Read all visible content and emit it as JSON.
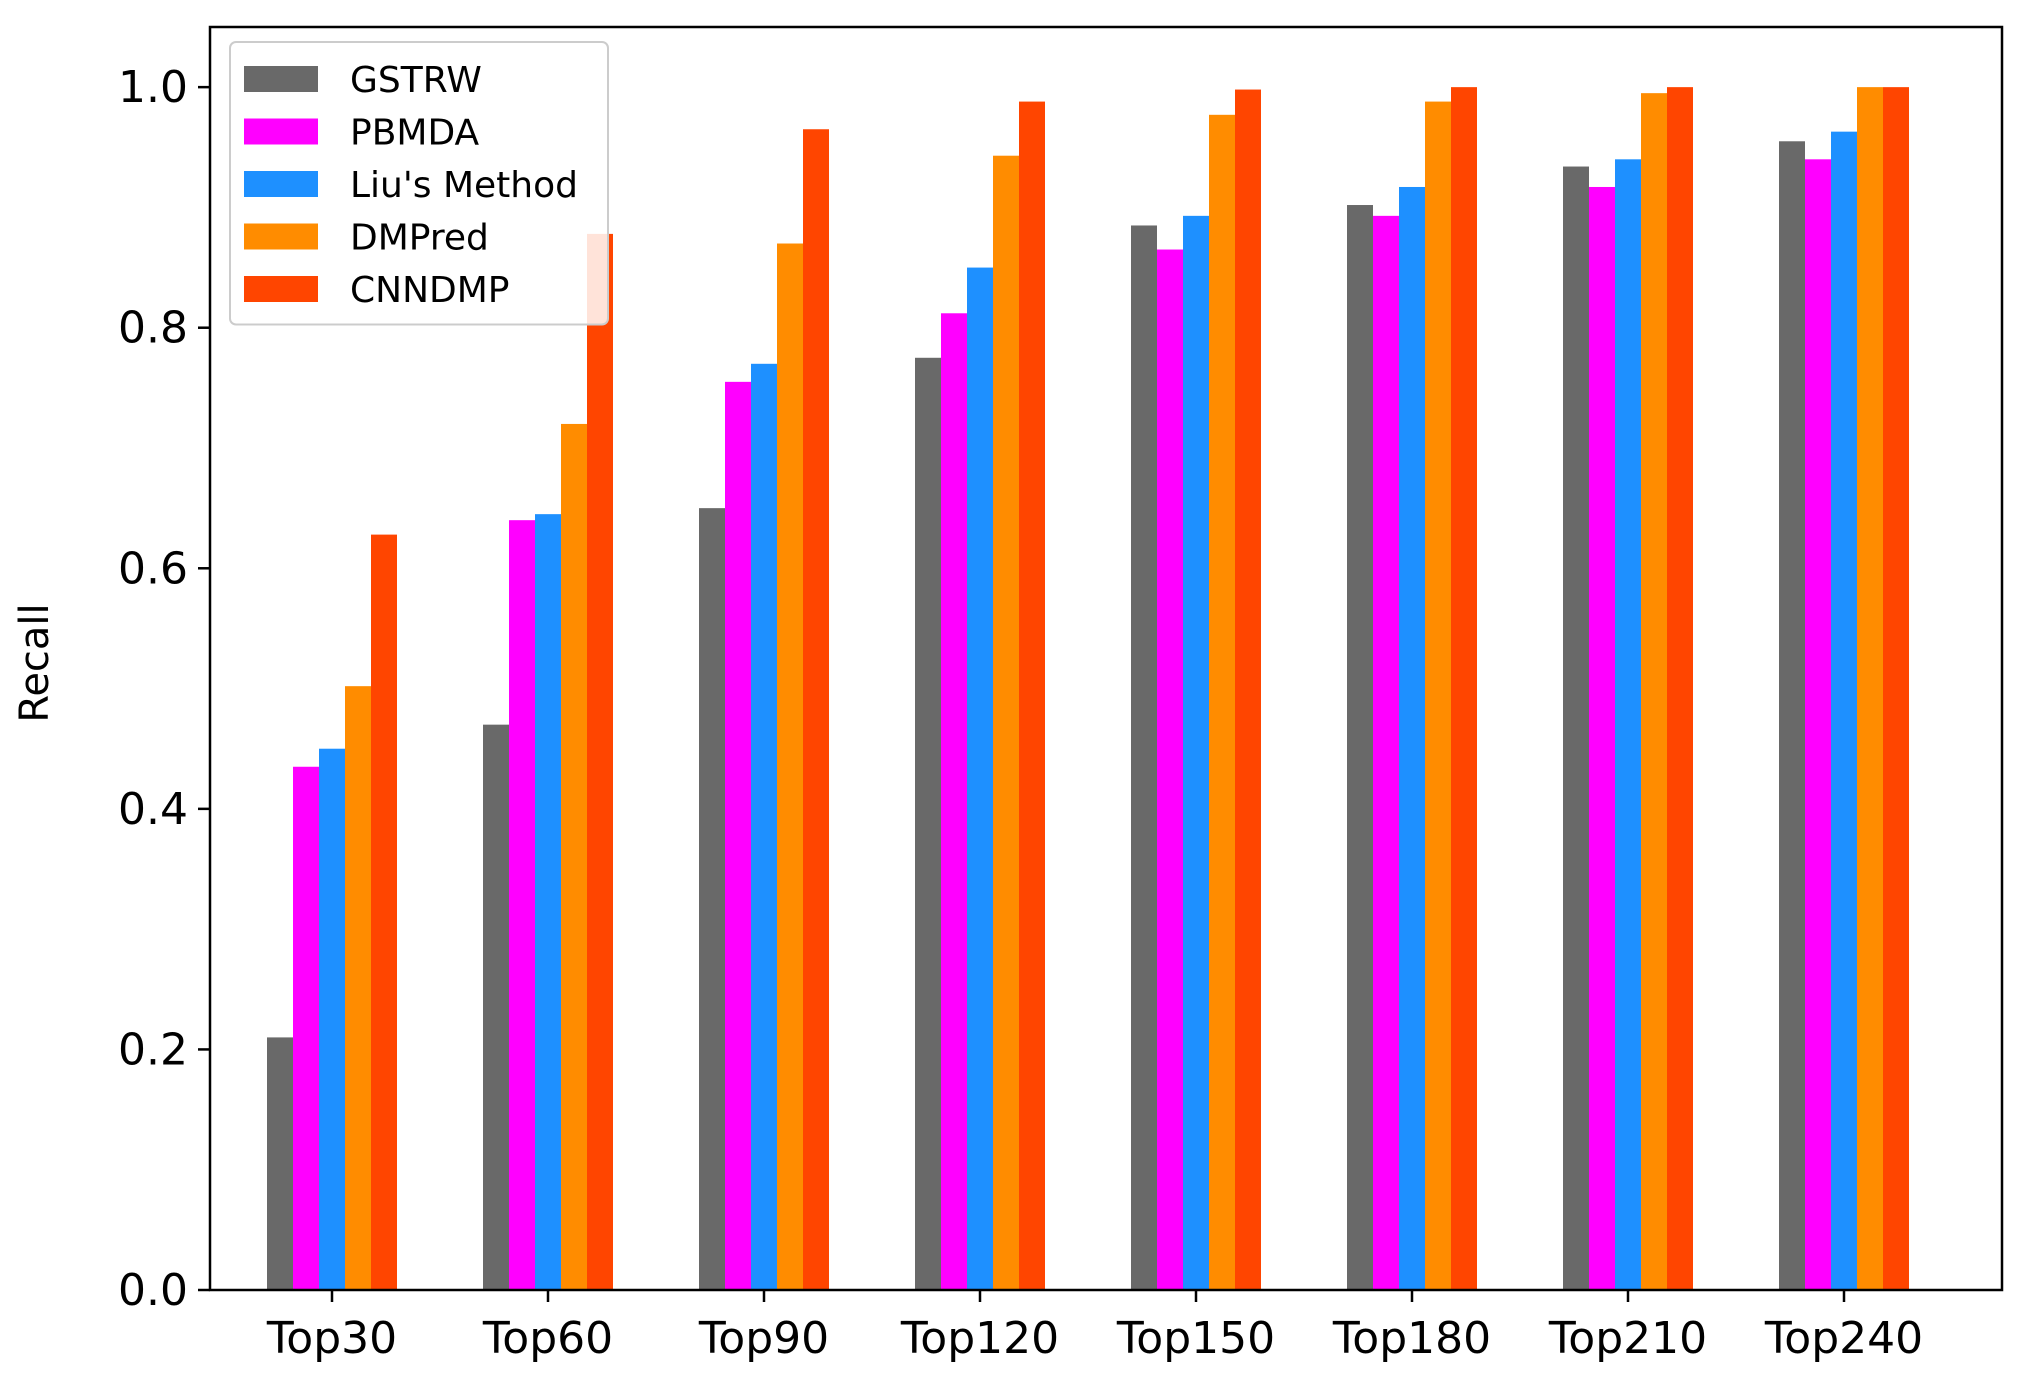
{
  "chart_data": {
    "type": "bar",
    "categories": [
      "Top30",
      "Top60",
      "Top90",
      "Top120",
      "Top150",
      "Top180",
      "Top210",
      "Top240"
    ],
    "series": [
      {
        "name": "GSTRW",
        "color": "#696969",
        "values": [
          0.21,
          0.47,
          0.65,
          0.775,
          0.885,
          0.902,
          0.934,
          0.955
        ]
      },
      {
        "name": "PBMDA",
        "color": "#ff00ff",
        "values": [
          0.435,
          0.64,
          0.755,
          0.812,
          0.865,
          0.893,
          0.917,
          0.94
        ]
      },
      {
        "name": "Liu's Method",
        "color": "#1e90ff",
        "values": [
          0.45,
          0.645,
          0.77,
          0.85,
          0.893,
          0.917,
          0.94,
          0.963
        ]
      },
      {
        "name": "DMPred",
        "color": "#ff8c00",
        "values": [
          0.502,
          0.72,
          0.87,
          0.943,
          0.977,
          0.988,
          0.995,
          1.0
        ]
      },
      {
        "name": "CNNDMP",
        "color": "#ff4500",
        "values": [
          0.628,
          0.878,
          0.965,
          0.988,
          0.998,
          1.0,
          1.0,
          1.0
        ]
      }
    ],
    "ylabel": "Recall",
    "xlabel": "",
    "ylim": [
      0,
      1.05
    ],
    "yticks": [
      "0.0",
      "0.2",
      "0.4",
      "0.6",
      "0.8",
      "1.0"
    ],
    "legend_position": "top-left",
    "grid": false
  }
}
